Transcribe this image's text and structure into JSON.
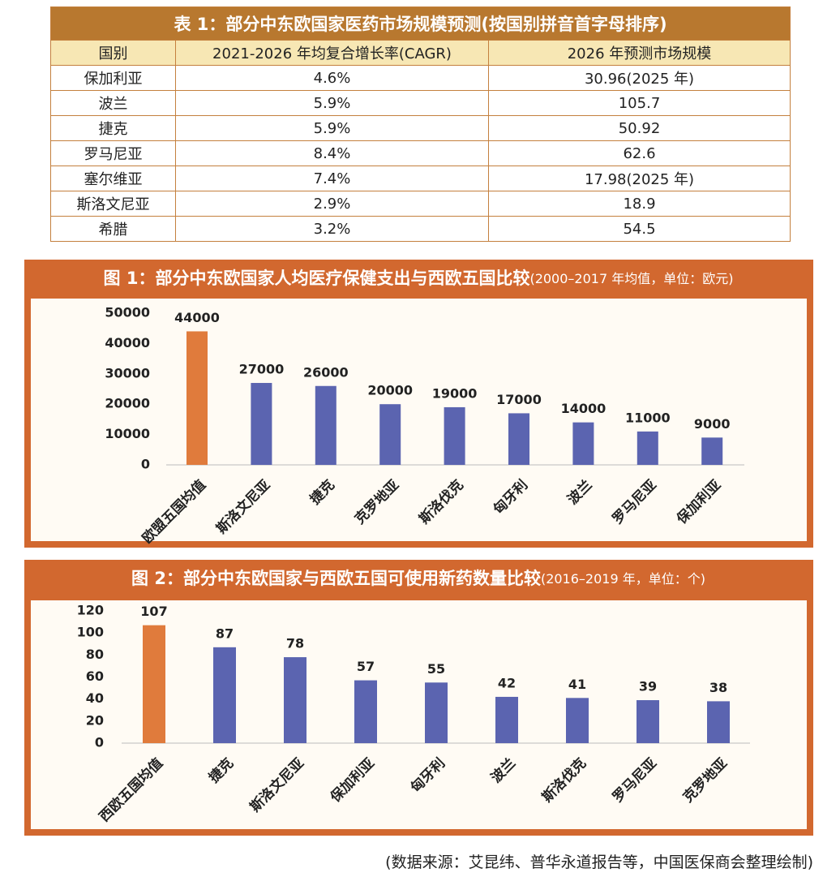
{
  "table": {
    "title": "表 1：部分中东欧国家医药市场规模预测(按国别拼音首字母排序)",
    "header": [
      "国别",
      "2021-2026 年均复合增长率(CAGR)",
      "2026 年预测市场规模"
    ],
    "rows": [
      [
        "保加利亚",
        "4.6%",
        "30.96(2025 年)"
      ],
      [
        "波兰",
        "5.9%",
        "105.7"
      ],
      [
        "捷克",
        "5.9%",
        "50.92"
      ],
      [
        "罗马尼亚",
        "8.4%",
        "62.6"
      ],
      [
        "塞尔维亚",
        "7.4%",
        "17.98(2025 年)"
      ],
      [
        "斯洛文尼亚",
        "2.9%",
        "18.9"
      ],
      [
        "希腊",
        "3.2%",
        "54.5"
      ]
    ]
  },
  "chart_data": [
    {
      "type": "bar",
      "title": "图 1：部分中东欧国家人均医疗保健支出与西欧五国比较",
      "subtitle": "(2000–2017 年均值，单位：欧元)",
      "categories": [
        "欧盟五国均值",
        "斯洛文尼亚",
        "捷克",
        "克罗地亚",
        "斯洛伐克",
        "匈牙利",
        "波兰",
        "罗马尼亚",
        "保加利亚"
      ],
      "values": [
        44000,
        27000,
        26000,
        20000,
        19000,
        17000,
        14000,
        11000,
        9000
      ],
      "colors": [
        "#e07b3c",
        "#5b64b0",
        "#5b64b0",
        "#5b64b0",
        "#5b64b0",
        "#5b64b0",
        "#5b64b0",
        "#5b64b0",
        "#5b64b0"
      ],
      "ylim": [
        0,
        50000
      ],
      "yticks": [
        0,
        10000,
        20000,
        30000,
        40000,
        50000
      ],
      "grid": false
    },
    {
      "type": "bar",
      "title": "图 2：部分中东欧国家与西欧五国可使用新药数量比较",
      "subtitle": "(2016–2019 年，单位：个)",
      "categories": [
        "西欧五国均值",
        "捷克",
        "斯洛文尼亚",
        "保加利亚",
        "匈牙利",
        "波兰",
        "斯洛伐克",
        "罗马尼亚",
        "克罗地亚"
      ],
      "values": [
        107,
        87,
        78,
        57,
        55,
        42,
        41,
        39,
        38
      ],
      "colors": [
        "#e07b3c",
        "#5b64b0",
        "#5b64b0",
        "#5b64b0",
        "#5b64b0",
        "#5b64b0",
        "#5b64b0",
        "#5b64b0",
        "#5b64b0"
      ],
      "ylim": [
        0,
        120
      ],
      "yticks": [
        0,
        20,
        40,
        60,
        80,
        100,
        120
      ],
      "grid": false
    }
  ],
  "source": "(数据来源：艾昆纬、普华永道报告等，中国医保商会整理绘制)"
}
